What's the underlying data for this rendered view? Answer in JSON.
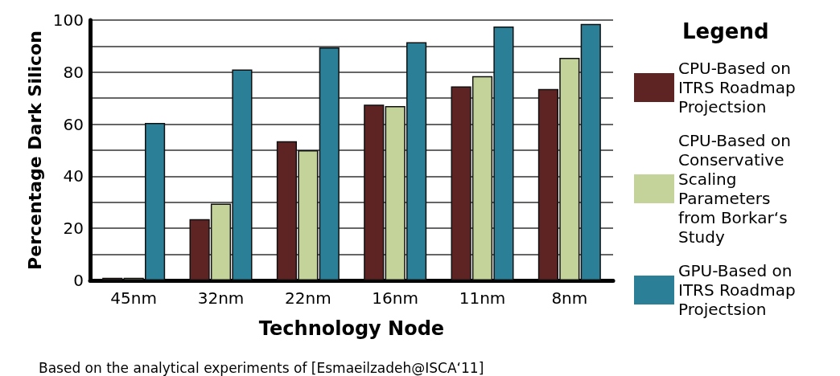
{
  "chart_data": {
    "type": "bar",
    "xlabel": "Technology Node",
    "ylabel": "Percentage Dark Silicon",
    "legend_title": "Legend",
    "categories": [
      "45nm",
      "32nm",
      "22nm",
      "16nm",
      "11nm",
      "8nm"
    ],
    "series": [
      {
        "name": "CPU-Based on ITRS Roadmap Projectsion",
        "color": "#5e2424",
        "values": [
          1,
          23.5,
          53.5,
          67.5,
          74.5,
          73.5
        ]
      },
      {
        "name": "CPU-Based on Conservative Scaling Parameters from Borkar‘s Study",
        "color": "#c3d39a",
        "values": [
          1,
          29.5,
          50,
          67,
          78.5,
          85.5
        ]
      },
      {
        "name": "GPU-Based on ITRS Roadmap Projectsion",
        "color": "#2b7f96",
        "values": [
          60.5,
          81,
          89.5,
          91.5,
          97.5,
          98.5
        ]
      }
    ],
    "ylim": [
      0,
      100
    ],
    "yticks": [
      0,
      {
        "value": 10,
        "label": null
      },
      20,
      {
        "value": 30,
        "label": null
      },
      40,
      {
        "value": 50,
        "label": null
      },
      60,
      {
        "value": 70,
        "label": null
      },
      80,
      {
        "value": 90,
        "label": null
      },
      100
    ],
    "grid": "y",
    "legend": "right",
    "annotations": [
      "Based on the analytical experiments of [Esmaeilzadeh@ISCA‘11]"
    ]
  }
}
